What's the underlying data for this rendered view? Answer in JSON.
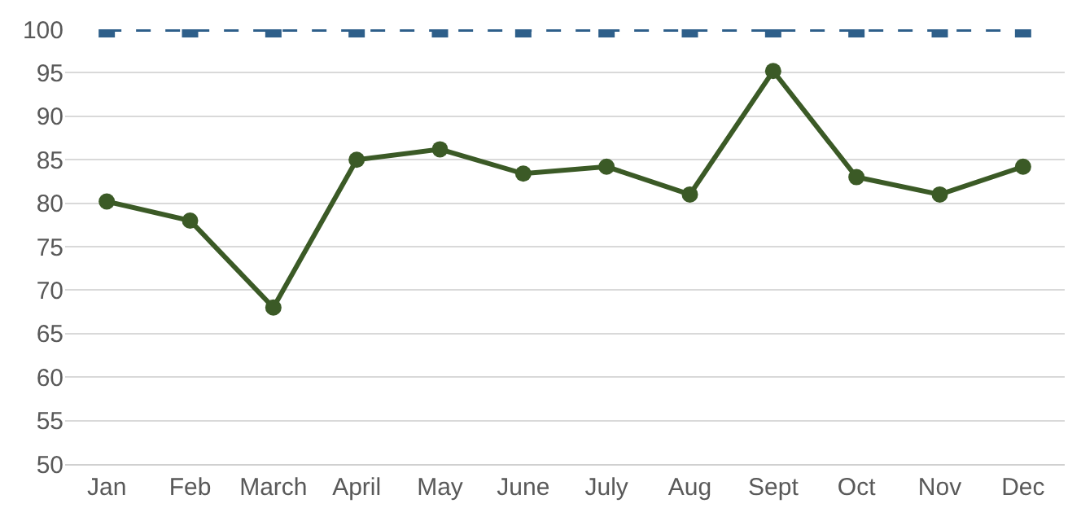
{
  "chart_data": {
    "type": "line",
    "categories": [
      "Jan",
      "Feb",
      "March",
      "April",
      "May",
      "June",
      "July",
      "Aug",
      "Sept",
      "Oct",
      "Nov",
      "Dec"
    ],
    "series": [
      {
        "color": "#2e5f8a",
        "values": [
          100,
          100,
          100,
          100,
          100,
          100,
          100,
          100,
          100,
          100,
          100,
          100
        ],
        "marker": "square",
        "line_style": "dashed"
      },
      {
        "color": "#3b5a26",
        "values": [
          80.2,
          78,
          68,
          85,
          86.2,
          83.4,
          84.2,
          81,
          95.2,
          83,
          81,
          84.2
        ],
        "marker": "circle",
        "line_style": "solid"
      }
    ],
    "ylim": [
      50,
      100
    ],
    "yticks": [
      50,
      55,
      60,
      65,
      70,
      75,
      80,
      85,
      90,
      95,
      100
    ],
    "grid": "y",
    "legend": false
  }
}
